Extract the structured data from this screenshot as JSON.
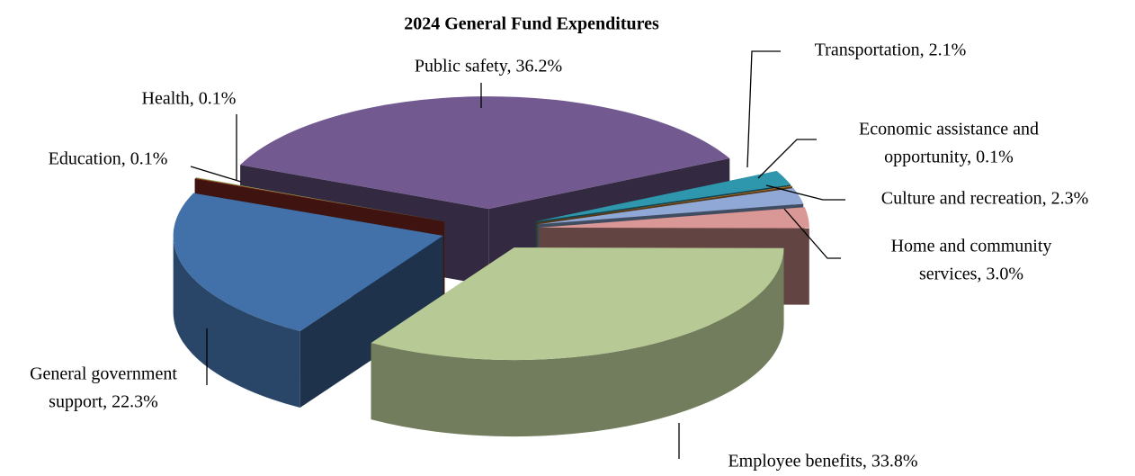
{
  "chart_data": {
    "type": "pie3d",
    "title": "2024 General Fund Expenditures",
    "values": [
      36.2,
      2.1,
      0.1,
      2.3,
      3.0,
      33.8,
      22.3,
      0.1,
      0.1
    ],
    "value_labels": [
      [
        "Public safety, 36.2%"
      ],
      [
        "Transportation, 2.1%"
      ],
      [
        "Economic assistance and",
        "opportunity, 0.1%"
      ],
      [
        "Culture and recreation, 2.3%"
      ],
      [
        "Home and community",
        "services, 3.0%"
      ],
      [
        "Employee benefits, 33.8%"
      ],
      [
        "General government",
        "support, 22.3%"
      ],
      [
        "Education, 0.1%"
      ],
      [
        "Health, 0.1%"
      ]
    ],
    "colors": [
      "#725a91",
      "#2f97ad",
      "#c07a2e",
      "#8fa8d6",
      "#d99795",
      "#b7c995",
      "#4270a8",
      "#8b2a21",
      "#9bb35a"
    ]
  }
}
